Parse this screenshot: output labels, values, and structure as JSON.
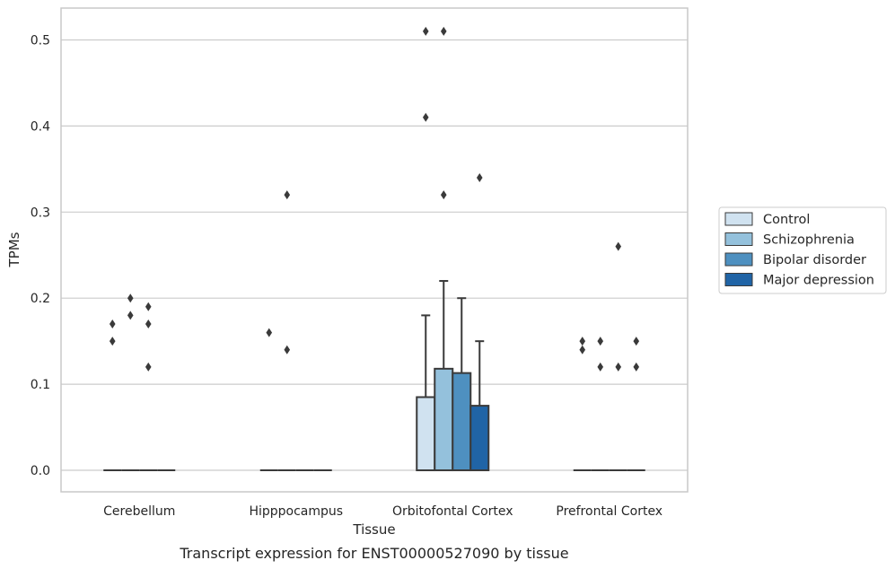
{
  "caption": "Transcript expression for ENST00000527090 by tissue",
  "colors": {
    "grid": "#cccccc",
    "spine": "#c8c8c8",
    "box_edge": "#3a3a3a",
    "outlier": "#3a3a3a"
  },
  "chart_data": {
    "type": "box",
    "xlabel": "Tissue",
    "ylabel": "TPMs",
    "ylim": [
      -0.025,
      0.537
    ],
    "yticks": [
      0.0,
      0.1,
      0.2,
      0.3,
      0.4,
      0.5
    ],
    "ytick_labels": [
      "0.0",
      "0.1",
      "0.2",
      "0.3",
      "0.4",
      "0.5"
    ],
    "grid": true,
    "legend_position": "outside-right",
    "categories": [
      "Cerebellum",
      "Hipppocampus",
      "Orbitofontal Cortex",
      "Prefrontal Cortex"
    ],
    "series": [
      {
        "name": "Control",
        "color": "#d0e2f0",
        "boxes": [
          {
            "q1": 0,
            "median": 0,
            "q3": 0,
            "whisker_low": 0,
            "whisker_high": 0,
            "outliers": [
              0.17,
              0.15
            ]
          },
          {
            "q1": 0,
            "median": 0,
            "q3": 0,
            "whisker_low": 0,
            "whisker_high": 0,
            "outliers": [
              0.16
            ]
          },
          {
            "q1": 0,
            "median": 0,
            "q3": 0.085,
            "whisker_low": 0,
            "whisker_high": 0.18,
            "outliers": [
              0.51,
              0.41
            ]
          },
          {
            "q1": 0,
            "median": 0,
            "q3": 0,
            "whisker_low": 0,
            "whisker_high": 0,
            "outliers": [
              0.15,
              0.14
            ]
          }
        ]
      },
      {
        "name": "Schizophrenia",
        "color": "#94c1dc",
        "boxes": [
          {
            "q1": 0,
            "median": 0,
            "q3": 0,
            "whisker_low": 0,
            "whisker_high": 0,
            "outliers": [
              0.2,
              0.18
            ]
          },
          {
            "q1": 0,
            "median": 0,
            "q3": 0,
            "whisker_low": 0,
            "whisker_high": 0,
            "outliers": [
              0.32,
              0.14
            ]
          },
          {
            "q1": 0,
            "median": 0,
            "q3": 0.118,
            "whisker_low": 0,
            "whisker_high": 0.22,
            "outliers": [
              0.51,
              0.32
            ]
          },
          {
            "q1": 0,
            "median": 0,
            "q3": 0,
            "whisker_low": 0,
            "whisker_high": 0,
            "outliers": [
              0.15,
              0.12
            ]
          }
        ]
      },
      {
        "name": "Bipolar disorder",
        "color": "#4e90c0",
        "boxes": [
          {
            "q1": 0,
            "median": 0,
            "q3": 0,
            "whisker_low": 0,
            "whisker_high": 0,
            "outliers": [
              0.19,
              0.17,
              0.12
            ]
          },
          {
            "q1": 0,
            "median": 0,
            "q3": 0,
            "whisker_low": 0,
            "whisker_high": 0,
            "outliers": []
          },
          {
            "q1": 0,
            "median": 0,
            "q3": 0.113,
            "whisker_low": 0,
            "whisker_high": 0.2,
            "outliers": []
          },
          {
            "q1": 0,
            "median": 0,
            "q3": 0,
            "whisker_low": 0,
            "whisker_high": 0,
            "outliers": [
              0.26,
              0.12
            ]
          }
        ]
      },
      {
        "name": "Major depression",
        "color": "#2064a6",
        "boxes": [
          {
            "q1": 0,
            "median": 0,
            "q3": 0,
            "whisker_low": 0,
            "whisker_high": 0,
            "outliers": []
          },
          {
            "q1": 0,
            "median": 0,
            "q3": 0,
            "whisker_low": 0,
            "whisker_high": 0,
            "outliers": []
          },
          {
            "q1": 0,
            "median": 0,
            "q3": 0.075,
            "whisker_low": 0,
            "whisker_high": 0.15,
            "outliers": [
              0.34
            ]
          },
          {
            "q1": 0,
            "median": 0,
            "q3": 0,
            "whisker_low": 0,
            "whisker_high": 0,
            "outliers": [
              0.15,
              0.12
            ]
          }
        ]
      }
    ]
  }
}
